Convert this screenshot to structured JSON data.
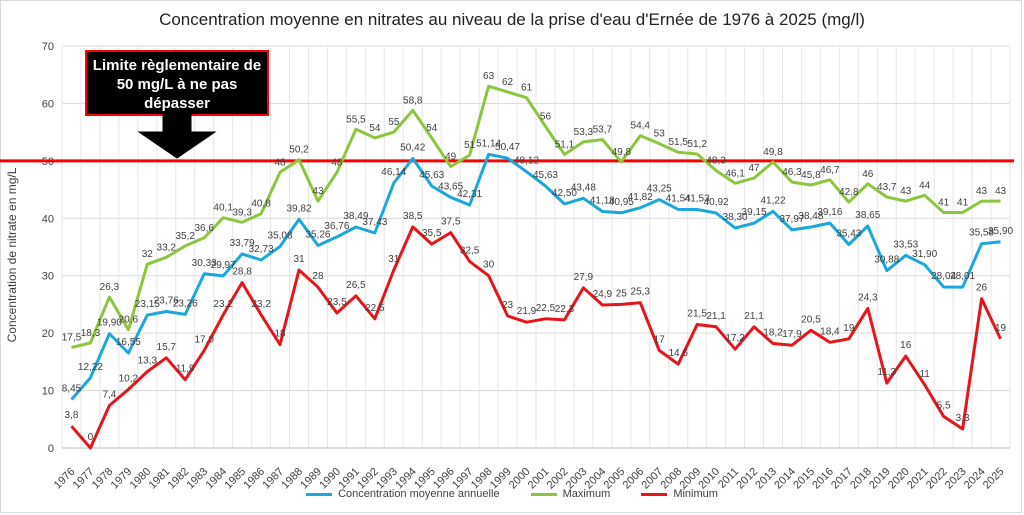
{
  "chart_data": {
    "type": "line",
    "title": "Concentration moyenne en nitrates au niveau de la prise d'eau d'Ernée de 1976 à 2025 (mg/l)",
    "ylabel": "Concentration de nitrate en mg/L",
    "xlabel": "",
    "ylim": [
      0,
      70
    ],
    "yticks": [
      "0",
      "10",
      "20",
      "30",
      "40",
      "50",
      "60",
      "70"
    ],
    "grid": true,
    "legend_position": "bottom",
    "categories": [
      "1976",
      "1977",
      "1978",
      "1979",
      "1980",
      "1981",
      "1982",
      "1983",
      "1984",
      "1985",
      "1986",
      "1987",
      "1988",
      "1989",
      "1990",
      "1991",
      "1992",
      "1993",
      "1994",
      "1995",
      "1996",
      "1997",
      "1998",
      "1999",
      "2000",
      "2001",
      "2002",
      "2003",
      "2004",
      "2005",
      "2006",
      "2007",
      "2008",
      "2009",
      "2010",
      "2011",
      "2012",
      "2013",
      "2014",
      "2015",
      "2016",
      "2017",
      "2018",
      "2019",
      "2020",
      "2021",
      "2022",
      "2023",
      "2024",
      "2025"
    ],
    "reference_line": {
      "value": 50,
      "color": "#ff0000"
    },
    "annotation": {
      "text": "Limite règlementaire de 50 mg/L à ne pas dépasser"
    },
    "series": [
      {
        "name": "Concentration moyenne annuelle",
        "color": "#1ba6dd",
        "values": [
          8.45,
          12.22,
          19.9,
          16.55,
          23.15,
          23.76,
          23.26,
          30.33,
          29.97,
          33.79,
          32.73,
          35.08,
          39.82,
          35.26,
          36.76,
          38.49,
          37.43,
          46.14,
          50.42,
          45.63,
          43.65,
          42.31,
          51.14,
          50.47,
          48.12,
          45.63,
          42.5,
          43.48,
          41.18,
          40.95,
          41.82,
          43.25,
          41.54,
          41.53,
          40.92,
          38.3,
          39.15,
          41.22,
          37.97,
          38.48,
          39.16,
          35.43,
          38.65,
          30.88,
          33.53,
          31.9,
          28.04,
          28.01,
          35.58,
          35.9
        ],
        "labels": [
          "8,45",
          "12,22",
          "19,90",
          "16,55",
          "23,15",
          "23,76",
          "23,26",
          "30,33",
          "29,97",
          "33,79",
          "32,73",
          "35,08",
          "39,82",
          "35,26",
          "36,76",
          "38,49",
          "37,43",
          "46,14",
          "50,42",
          "45,63",
          "43,65",
          "42,31",
          "51,14",
          "50,47",
          "48,12",
          "45,63",
          "42,50",
          "43,48",
          "41,18",
          "40,95",
          "41,82",
          "43,25",
          "41,54",
          "41,53",
          "40,92",
          "38,30",
          "39,15",
          "41,22",
          "37,97",
          "38,48",
          "39,16",
          "35,43",
          "38,65",
          "30,88",
          "33,53",
          "31,90",
          "28,04",
          "28,01",
          "35,58",
          "35,90"
        ]
      },
      {
        "name": "Maximum",
        "color": "#8cc63f",
        "values": [
          17.5,
          18.3,
          26.3,
          20.6,
          32,
          33.2,
          35.2,
          36.6,
          40.1,
          39.3,
          40.8,
          48,
          50.2,
          43,
          48,
          55.5,
          54,
          55,
          58.8,
          54,
          49,
          51,
          63,
          62,
          61,
          56,
          51.1,
          53.3,
          53.7,
          49.8,
          54.4,
          53,
          51.5,
          51.2,
          48.3,
          46.1,
          47,
          49.8,
          46.3,
          45.8,
          46.7,
          42.8,
          46,
          43.7,
          43,
          44,
          41,
          41,
          43,
          43
        ],
        "labels": [
          "17,5",
          "18,3",
          "26,3",
          "20,6",
          "32",
          "33,2",
          "35,2",
          "36,6",
          "40,1",
          "39,3",
          "40,8",
          "48",
          "50,2",
          "43",
          "48",
          "55,5",
          "54",
          "55",
          "58,8",
          "54",
          "49",
          "51",
          "63",
          "62",
          "61",
          "56",
          "51,1",
          "53,3",
          "53,7",
          "49,8",
          "54,4",
          "53",
          "51,5",
          "51,2",
          "48,3",
          "46,1",
          "47",
          "49,8",
          "46,3",
          "45,8",
          "46,7",
          "42,8",
          "46",
          "43,7",
          "43",
          "44",
          "41",
          "41",
          "43",
          "43"
        ]
      },
      {
        "name": "Minimum",
        "color": "#e8141b",
        "values": [
          3.8,
          0,
          7.4,
          10.2,
          13.3,
          15.7,
          11.9,
          17.0,
          23.2,
          28.8,
          23.2,
          18,
          31,
          28,
          23.5,
          26.5,
          22.5,
          31,
          38.5,
          35.5,
          37.5,
          32.5,
          30,
          23,
          21.9,
          22.5,
          22.3,
          27.9,
          24.9,
          25,
          25.3,
          17,
          14.6,
          21.5,
          21.1,
          17.2,
          21.1,
          18.2,
          17.9,
          20.5,
          18.4,
          19,
          24.3,
          11.3,
          16,
          11,
          5.5,
          3.3,
          26,
          19
        ],
        "labels": [
          "3,8",
          "0",
          "7,4",
          "10,2",
          "13,3",
          "15,7",
          "11,9",
          "17,0",
          "23,2",
          "28,8",
          "23,2",
          "18",
          "31",
          "28",
          "23,5",
          "26,5",
          "22,5",
          "31",
          "38,5",
          "35,5",
          "37,5",
          "32,5",
          "30",
          "23",
          "21,9",
          "22,5",
          "22,3",
          "27,9",
          "24,9",
          "25",
          "25,3",
          "17",
          "14,6",
          "21,5",
          "21,1",
          "17,2",
          "21,1",
          "18,2",
          "17,9",
          "20,5",
          "18,4",
          "19",
          "24,3",
          "11,3",
          "16",
          "11",
          "5,5",
          "3,3",
          "26",
          "19"
        ]
      }
    ]
  }
}
